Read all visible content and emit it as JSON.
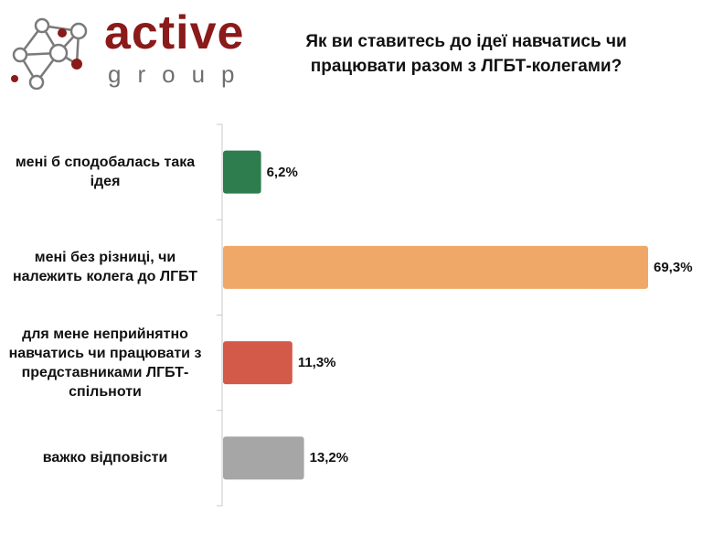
{
  "logo": {
    "word": "active",
    "sub": "group"
  },
  "chart_data": {
    "type": "bar",
    "orientation": "horizontal",
    "title": "Як ви ставитесь до ідеї навчатись чи працювати разом з ЛГБТ-колегами?",
    "categories": [
      "мені б сподобалась така ідея",
      "мені без різниці, чи належить колега до ЛГБТ",
      "для мене неприйнятно навчатись чи працювати з представниками ЛГБТ-спільноти",
      "важко відповісти"
    ],
    "values": [
      6.2,
      69.3,
      11.3,
      13.2
    ],
    "value_labels": [
      "6,2%",
      "69,3%",
      "11,3%",
      "13,2%"
    ],
    "colors": [
      "#2e7d4f",
      "#f0a868",
      "#d35a48",
      "#a6a6a6"
    ],
    "xlim": [
      0,
      69.3
    ],
    "grid": false,
    "legend": "none"
  }
}
